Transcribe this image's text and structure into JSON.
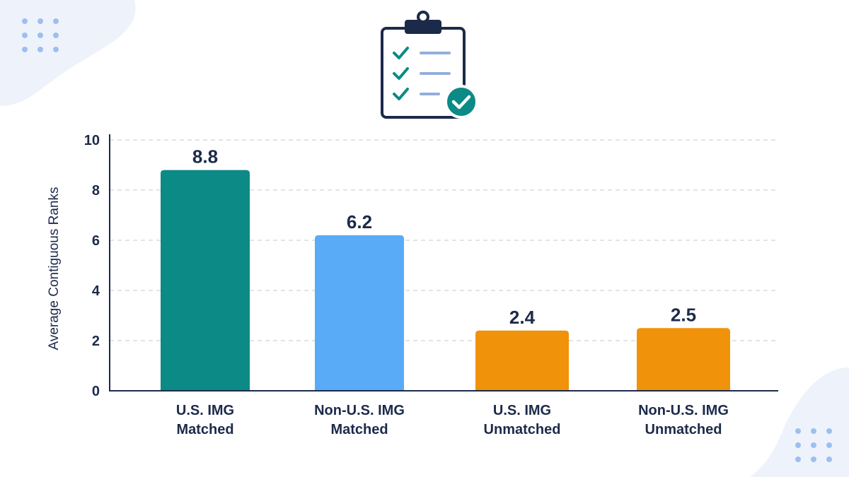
{
  "chart_data": {
    "type": "bar",
    "title": "",
    "xlabel": "",
    "ylabel": "Average Contiguous Ranks",
    "ylim": [
      0,
      10
    ],
    "yticks": [
      0,
      2,
      4,
      6,
      8,
      10
    ],
    "grid": true,
    "categories": [
      {
        "line1": "U.S. IMG",
        "line2": "Matched",
        "value": 8.8,
        "value_label": "8.8",
        "color": "#0b8a86"
      },
      {
        "line1": "Non-U.S. IMG",
        "line2": "Matched",
        "value": 6.2,
        "value_label": "6.2",
        "color": "#5aabf7"
      },
      {
        "line1": "U.S. IMG",
        "line2": "Unmatched",
        "value": 2.4,
        "value_label": "2.4",
        "color": "#f0920a"
      },
      {
        "line1": "Non-U.S. IMG",
        "line2": "Unmatched",
        "value": 2.5,
        "value_label": "2.5",
        "color": "#f0920a"
      }
    ]
  },
  "decor": {
    "header_icon": "clipboard-checklist-icon",
    "corner_icon": "dot-grid-icon",
    "colors": {
      "ink": "#1c2a4a",
      "check": "#0b8a86",
      "line": "#93aede",
      "blob": "#eef3fb",
      "dots": "#9dbff0",
      "grid": "#d6dbe3"
    }
  }
}
